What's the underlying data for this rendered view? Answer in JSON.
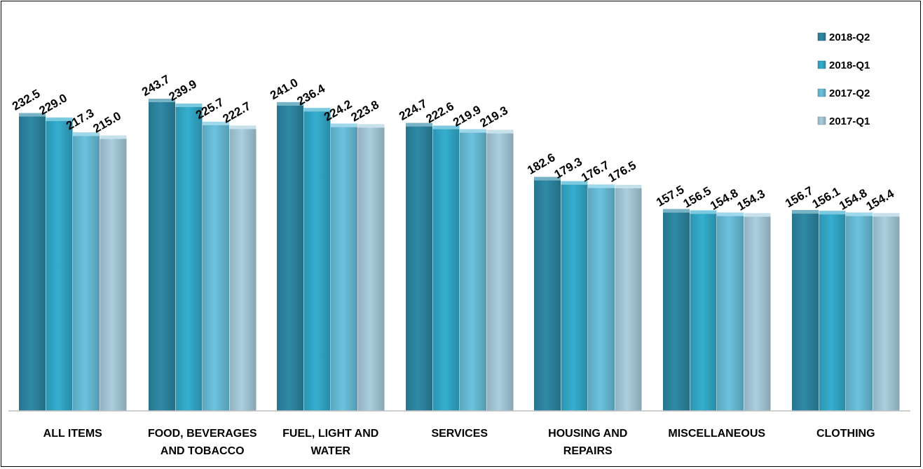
{
  "chart_data": {
    "type": "bar",
    "categories": [
      [
        "ALL ITEMS"
      ],
      [
        "FOOD, BEVERAGES",
        "AND TOBACCO"
      ],
      [
        "FUEL, LIGHT AND",
        "WATER"
      ],
      [
        "SERVICES"
      ],
      [
        "HOUSING AND",
        "REPAIRS"
      ],
      [
        "MISCELLANEOUS"
      ],
      [
        "CLOTHING"
      ]
    ],
    "series": [
      {
        "name": "2018-Q2",
        "color": "#2E8AA6",
        "values": [
          232.5,
          243.7,
          241.0,
          224.7,
          182.6,
          157.5,
          156.7
        ]
      },
      {
        "name": "2018-Q1",
        "color": "#35AECF",
        "values": [
          229.0,
          239.9,
          236.4,
          222.6,
          179.3,
          156.5,
          156.1
        ]
      },
      {
        "name": "2017-Q2",
        "color": "#6CC3DF",
        "values": [
          217.3,
          225.7,
          224.2,
          219.9,
          176.7,
          154.8,
          154.8
        ]
      },
      {
        "name": "2017-Q1",
        "color": "#AACFDF",
        "values": [
          215.0,
          222.7,
          223.8,
          219.3,
          176.5,
          154.3,
          154.4
        ]
      }
    ],
    "value_labels": [
      [
        "232.5",
        "229.0",
        "217.3",
        "215.0"
      ],
      [
        "243.7",
        "239.9",
        "225.7",
        "222.7"
      ],
      [
        "241.0",
        "236.4",
        "224.2",
        "223.8"
      ],
      [
        "224.7",
        "222.6",
        "219.9",
        "219.3"
      ],
      [
        "182.6",
        "179.3",
        "176.7",
        "176.5"
      ],
      [
        "157.5",
        "156.5",
        "154.8",
        "154.3"
      ],
      [
        "156.7",
        "156.1",
        "154.8",
        "154.4"
      ]
    ],
    "ylim": [
      0,
      243.7
    ],
    "grid": false,
    "legend_position": "top-right"
  }
}
